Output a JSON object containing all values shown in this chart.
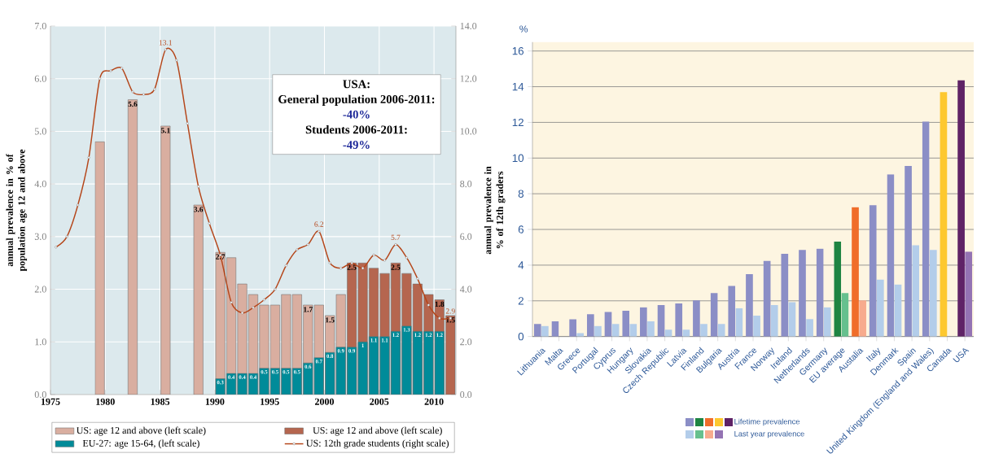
{
  "chart_data": [
    {
      "type": "bar",
      "ylabel": "annual prevalence in % of population age 12 and above",
      "y2label": "annual prevalence in % of 12th graders",
      "annotations": [
        "USA:",
        "General population 2006-2011:",
        "-40%",
        "Students 2006-2011:",
        "-49%"
      ],
      "xlim": [
        1975,
        2012
      ],
      "xticks": [
        1975,
        1980,
        1985,
        1990,
        1995,
        2000,
        2005,
        2010
      ],
      "ylim": [
        0,
        7
      ],
      "yticks": [
        {
          "value": 0,
          "label": "0.0"
        },
        {
          "value": 1,
          "label": "1.0"
        },
        {
          "value": 2,
          "label": "2.0"
        },
        {
          "value": 3,
          "label": "3.0"
        },
        {
          "value": 4,
          "label": "4.0"
        },
        {
          "value": 5,
          "label": "5.0"
        },
        {
          "value": 6,
          "label": "6.0"
        },
        {
          "value": 7,
          "label": "7.0"
        }
      ],
      "y2lim": [
        0,
        14
      ],
      "y2ticks": [
        {
          "value": 0,
          "label": "0.0"
        },
        {
          "value": 2,
          "label": "2.0"
        },
        {
          "value": 4,
          "label": "4.0"
        },
        {
          "value": 6,
          "label": "6.0"
        },
        {
          "value": 8,
          "label": "8.0"
        },
        {
          "value": 10,
          "label": "10.0"
        },
        {
          "value": 12,
          "label": "12.0"
        },
        {
          "value": 14,
          "label": "14.0"
        }
      ],
      "grid": true,
      "legend": "bottom",
      "series": [
        {
          "name": "US: age 12 and above (left scale)",
          "type": "bar",
          "color": "#d9aea0",
          "x": [
            1979.5,
            1982.5,
            1985.5,
            1988.5,
            1990.5,
            1991.5,
            1992.5,
            1993.5,
            1994.5,
            1995.5,
            1996.5,
            1997.5,
            1998.5,
            1999.5,
            2000.5,
            2001.5
          ],
          "values": [
            4.8,
            5.6,
            5.1,
            3.6,
            2.7,
            2.6,
            2.1,
            1.9,
            1.7,
            1.7,
            1.9,
            1.9,
            1.7,
            1.7,
            1.5,
            1.9
          ],
          "value_labels": [
            null,
            "5.6",
            "5.1",
            "3.6",
            "2.7",
            null,
            null,
            null,
            null,
            null,
            null,
            null,
            "1.7",
            null,
            "1.5",
            null
          ]
        },
        {
          "name": "US: age 12 and above (left scale)",
          "type": "bar",
          "color": "#b5664f",
          "x": [
            2002.5,
            2003.5,
            2004.5,
            2005.5,
            2006.5,
            2007.5,
            2008.5,
            2009.5,
            2010.5,
            2011.5
          ],
          "values": [
            2.5,
            2.5,
            2.4,
            2.3,
            2.5,
            2.3,
            2.1,
            1.9,
            1.8,
            1.5
          ],
          "value_labels": [
            "2.5",
            null,
            null,
            null,
            "2.5",
            null,
            null,
            null,
            "1.8",
            "1.5"
          ]
        },
        {
          "name": "EU-27: age 15-64, (left scale)",
          "type": "bar",
          "color": "#008b99",
          "x": [
            1990.5,
            1991.5,
            1992.5,
            1993.5,
            1994.5,
            1995.5,
            1996.5,
            1997.5,
            1998.5,
            1999.5,
            2000.5,
            2001.5,
            2002.5,
            2003.5,
            2004.5,
            2005.5,
            2006.5,
            2007.5,
            2008.5,
            2009.5,
            2010.5
          ],
          "values": [
            0.3,
            0.4,
            0.4,
            0.4,
            0.5,
            0.5,
            0.5,
            0.5,
            0.6,
            0.7,
            0.8,
            0.9,
            0.9,
            1,
            1.1,
            1.1,
            1.2,
            1.3,
            1.2,
            1.2,
            1.2
          ],
          "value_labels": [
            "0.3",
            "0.4",
            "0.4",
            "0.4",
            "0.5",
            "0.5",
            "0.5",
            "0.5",
            "0.6",
            "0.7",
            "0.8",
            "0.9",
            "0.9",
            "1",
            "1.1",
            "1.1",
            "1.2",
            "1.3",
            "1.2",
            "1.2",
            "1.2"
          ]
        },
        {
          "name": "US: 12th grade students (right scale)",
          "type": "line",
          "axis": "y2",
          "marker": "circle",
          "color": "#b5461a",
          "x": [
            1975.5,
            1976.5,
            1977.5,
            1978.5,
            1979.5,
            1980.5,
            1981.5,
            1982.5,
            1983.5,
            1984.5,
            1985.5,
            1986.5,
            1987.5,
            1988.5,
            1989.5,
            1990.5,
            1991.5,
            1992.5,
            1993.5,
            1994.5,
            1995.5,
            1996.5,
            1997.5,
            1998.5,
            1999.5,
            2000.5,
            2001.5,
            2002.5,
            2003.5,
            2004.5,
            2005.5,
            2006.5,
            2007.5,
            2008.5,
            2009.5,
            2010.5,
            2011.5
          ],
          "values": [
            5.6,
            6.0,
            7.2,
            9.0,
            12.0,
            12.3,
            12.4,
            11.5,
            11.4,
            11.6,
            13.1,
            12.7,
            10.3,
            7.9,
            6.5,
            5.3,
            3.5,
            3.1,
            3.3,
            3.6,
            4.0,
            4.9,
            5.5,
            5.7,
            6.2,
            5.0,
            4.8,
            5.0,
            4.8,
            5.3,
            5.1,
            5.7,
            5.2,
            4.4,
            3.4,
            2.9,
            2.9
          ],
          "value_labels": [
            null,
            null,
            null,
            null,
            null,
            null,
            null,
            null,
            null,
            null,
            "13.1",
            null,
            null,
            null,
            null,
            null,
            null,
            null,
            null,
            null,
            null,
            null,
            null,
            null,
            "6.2",
            null,
            null,
            null,
            null,
            null,
            null,
            "5.7",
            null,
            null,
            null,
            null,
            "2.9"
          ]
        }
      ]
    },
    {
      "type": "bar",
      "ylabel": "%",
      "categories": [
        "Lithuania",
        "Malta",
        "Greece",
        "Portugal",
        "Cyprus",
        "Hungary",
        "Slovakia",
        "Czech Republic",
        "Latvia",
        "Finland",
        "Bulgaria",
        "Austria",
        "France",
        "Norway",
        "Ireland",
        "Netherlands",
        "Germany",
        "EU average",
        "Austalia",
        "Italy",
        "Denmark",
        "Spain",
        "United Kingdom (England and Wales)",
        "Canada",
        "USA"
      ],
      "ylim": [
        0,
        16.5
      ],
      "yticks": [
        0,
        2,
        4,
        6,
        8,
        10,
        12,
        14,
        16
      ],
      "grid": "y",
      "legend": "bottom",
      "series": [
        {
          "name": "Lifetime prevalence",
          "colors": [
            "#8b8ec6",
            "#8b8ec6",
            "#8b8ec6",
            "#8b8ec6",
            "#8b8ec6",
            "#8b8ec6",
            "#8b8ec6",
            "#8b8ec6",
            "#8b8ec6",
            "#8b8ec6",
            "#8b8ec6",
            "#8b8ec6",
            "#8b8ec6",
            "#8b8ec6",
            "#8b8ec6",
            "#8b8ec6",
            "#8b8ec6",
            "#1e8442",
            "#f06d2a",
            "#8b8ec6",
            "#8b8ec6",
            "#8b8ec6",
            "#8b8ec6",
            "#fdc82f",
            "#5f2366"
          ],
          "values": [
            0.7,
            0.85,
            0.97,
            1.25,
            1.37,
            1.44,
            1.64,
            1.76,
            1.85,
            2.03,
            2.44,
            2.83,
            3.49,
            4.24,
            4.64,
            4.85,
            4.92,
            5.32,
            7.24,
            7.36,
            9.09,
            9.56,
            12.04,
            13.7,
            14.36
          ]
        },
        {
          "name": "Last year prevalence",
          "colors": [
            "#b3cdea",
            "#b3cdea",
            "#b3cdea",
            "#b3cdea",
            "#b3cdea",
            "#b3cdea",
            "#b3cdea",
            "#b3cdea",
            "#b3cdea",
            "#b3cdea",
            "#b3cdea",
            "#b3cdea",
            "#b3cdea",
            "#b3cdea",
            "#b3cdea",
            "#b3cdea",
            "#b3cdea",
            "#66c08e",
            "#f7ab8e",
            "#b3cdea",
            "#b3cdea",
            "#b3cdea",
            "#b3cdea",
            "#b3cdea",
            "#9473b3"
          ],
          "values": [
            0.59,
            null,
            0.19,
            0.59,
            0.7,
            0.7,
            0.85,
            0.38,
            0.38,
            0.7,
            0.7,
            1.59,
            1.17,
            1.76,
            1.92,
            0.98,
            1.64,
            2.44,
            2.03,
            3.19,
            2.91,
            5.11,
            4.85,
            null,
            4.76
          ]
        }
      ]
    }
  ]
}
